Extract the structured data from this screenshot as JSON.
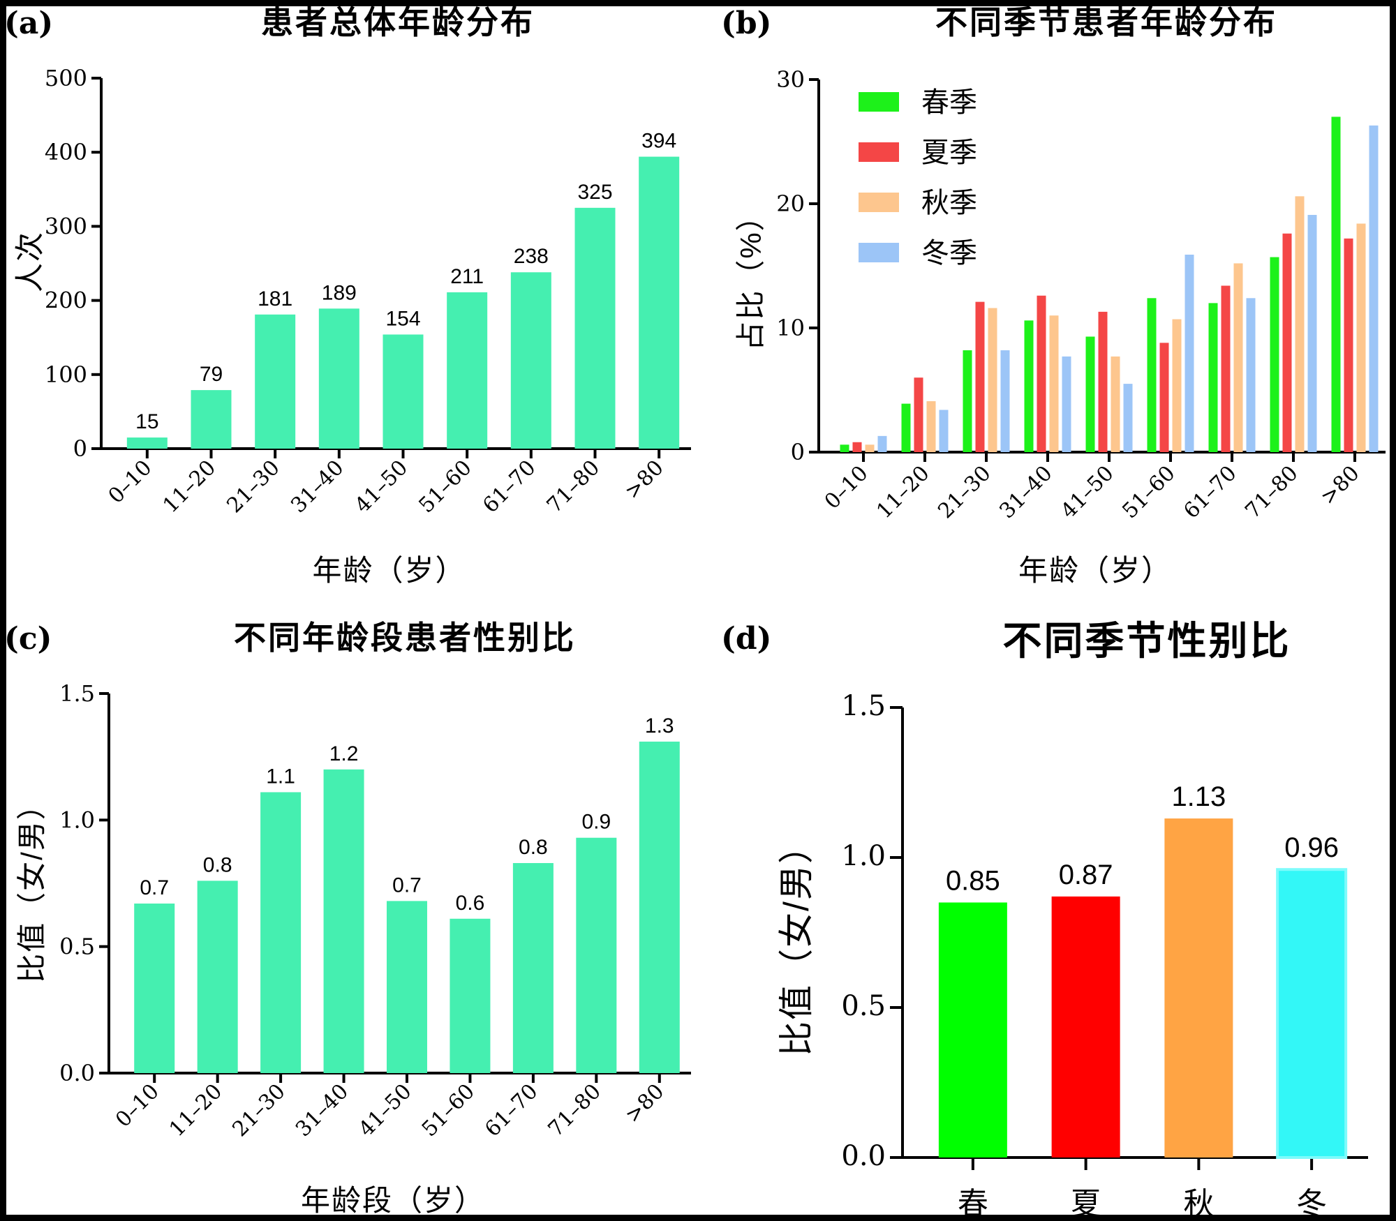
{
  "chart_data": [
    {
      "panel_label": "(a)",
      "type": "bar",
      "title": "患者总体年龄分布",
      "xlabel": "年龄（岁）",
      "ylabel": "人次",
      "categories": [
        "0–10",
        "11–20",
        "21–30",
        "31–40",
        "41–50",
        "51–60",
        "61–70",
        "71–80",
        ">80"
      ],
      "values": [
        15,
        79,
        181,
        189,
        154,
        211,
        238,
        325,
        394
      ],
      "data_labels": [
        "15",
        "79",
        "181",
        "189",
        "154",
        "211",
        "238",
        "325",
        "394"
      ],
      "ylim": [
        0,
        500
      ],
      "yticks": [
        0,
        100,
        200,
        300,
        400,
        500
      ],
      "ytick_labels": [
        "0",
        "100",
        "200",
        "300",
        "400",
        "500"
      ],
      "color": "#45EFB0"
    },
    {
      "panel_label": "(b)",
      "type": "bar",
      "title": "不同季节患者年龄分布",
      "xlabel": "年龄（岁）",
      "ylabel": "占比（%）",
      "categories": [
        "0–10",
        "11–20",
        "21–30",
        "31–40",
        "41–50",
        "51–60",
        "61–70",
        "71–80",
        ">80"
      ],
      "series": [
        {
          "name": "春季",
          "color": "#1DF11A",
          "values": [
            0.6,
            3.9,
            8.2,
            10.6,
            9.3,
            12.4,
            12.0,
            15.7,
            27.0
          ]
        },
        {
          "name": "夏季",
          "color": "#F44646",
          "values": [
            0.8,
            6.0,
            12.1,
            12.6,
            11.3,
            8.8,
            13.4,
            17.6,
            17.2
          ]
        },
        {
          "name": "秋季",
          "color": "#FDC68E",
          "values": [
            0.6,
            4.1,
            11.6,
            11.0,
            7.7,
            10.7,
            15.2,
            20.6,
            18.4
          ]
        },
        {
          "name": "冬季",
          "color": "#9CC5F7",
          "values": [
            1.3,
            3.4,
            8.2,
            7.7,
            5.5,
            15.9,
            12.4,
            19.1,
            26.3
          ]
        }
      ],
      "ylim": [
        0,
        30
      ],
      "yticks": [
        0,
        10,
        20,
        30
      ],
      "ytick_labels": [
        "0",
        "10",
        "20",
        "30"
      ],
      "legend_position": "top-left"
    },
    {
      "panel_label": "(c)",
      "type": "bar",
      "title": "不同年龄段患者性别比",
      "xlabel": "年龄段（岁）",
      "ylabel": "比值（女/男）",
      "categories": [
        "0–10",
        "11–20",
        "21–30",
        "31–40",
        "41–50",
        "51–60",
        "61–70",
        "71–80",
        ">80"
      ],
      "values": [
        0.67,
        0.76,
        1.11,
        1.2,
        0.68,
        0.61,
        0.83,
        0.93,
        1.31
      ],
      "data_labels": [
        "0.7",
        "0.8",
        "1.1",
        "1.2",
        "0.7",
        "0.6",
        "0.8",
        "0.9",
        "1.3"
      ],
      "ylim": [
        0,
        1.5
      ],
      "yticks": [
        0,
        0.5,
        1.0,
        1.5
      ],
      "ytick_labels": [
        "0.0",
        "0.5",
        "1.0",
        "1.5"
      ],
      "color": "#45EFB0"
    },
    {
      "panel_label": "(d)",
      "type": "bar",
      "title": "不同季节性别比",
      "xlabel": "",
      "ylabel": "比值（女/男）",
      "categories": [
        "春",
        "夏",
        "秋",
        "冬"
      ],
      "values": [
        0.85,
        0.87,
        1.13,
        0.96
      ],
      "data_labels": [
        "0.85",
        "0.87",
        "1.13",
        "0.96"
      ],
      "colors": [
        "#00FF00",
        "#FF0000",
        "#FFA444",
        "#33F7F7"
      ],
      "ylim": [
        0,
        1.5
      ],
      "yticks": [
        0,
        0.5,
        1.0,
        1.5
      ],
      "ytick_labels": [
        "0.0",
        "0.5",
        "1.0",
        "1.5"
      ]
    }
  ]
}
